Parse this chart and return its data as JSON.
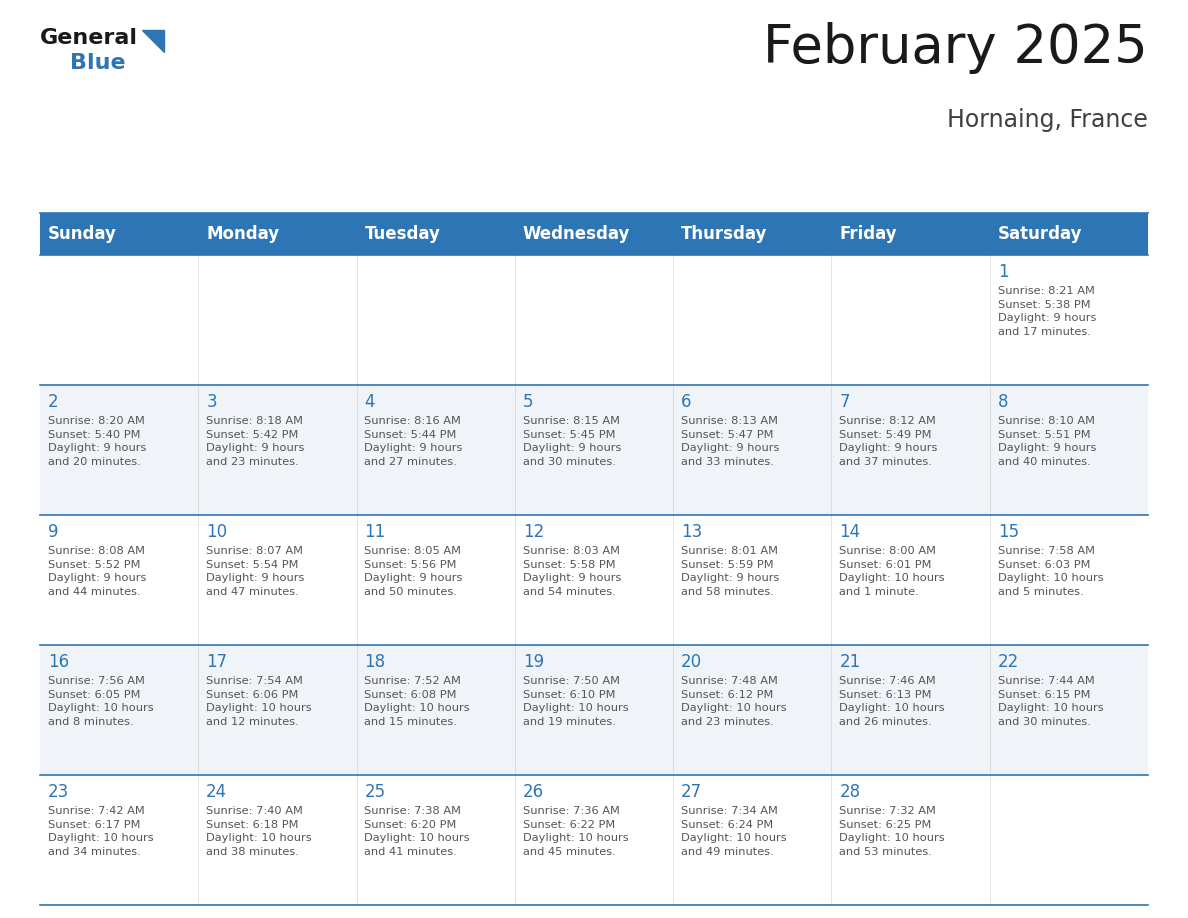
{
  "title": "February 2025",
  "subtitle": "Hornaing, France",
  "header_color": "#2E75B6",
  "header_text_color": "#FFFFFF",
  "border_color": "#2E75B6",
  "day_number_color": "#2E75B6",
  "text_color": "#404040",
  "cell_text_color": "#555555",
  "days_of_week": [
    "Sunday",
    "Monday",
    "Tuesday",
    "Wednesday",
    "Thursday",
    "Friday",
    "Saturday"
  ],
  "weeks": [
    [
      {
        "day": null,
        "info": null
      },
      {
        "day": null,
        "info": null
      },
      {
        "day": null,
        "info": null
      },
      {
        "day": null,
        "info": null
      },
      {
        "day": null,
        "info": null
      },
      {
        "day": null,
        "info": null
      },
      {
        "day": 1,
        "info": "Sunrise: 8:21 AM\nSunset: 5:38 PM\nDaylight: 9 hours\nand 17 minutes."
      }
    ],
    [
      {
        "day": 2,
        "info": "Sunrise: 8:20 AM\nSunset: 5:40 PM\nDaylight: 9 hours\nand 20 minutes."
      },
      {
        "day": 3,
        "info": "Sunrise: 8:18 AM\nSunset: 5:42 PM\nDaylight: 9 hours\nand 23 minutes."
      },
      {
        "day": 4,
        "info": "Sunrise: 8:16 AM\nSunset: 5:44 PM\nDaylight: 9 hours\nand 27 minutes."
      },
      {
        "day": 5,
        "info": "Sunrise: 8:15 AM\nSunset: 5:45 PM\nDaylight: 9 hours\nand 30 minutes."
      },
      {
        "day": 6,
        "info": "Sunrise: 8:13 AM\nSunset: 5:47 PM\nDaylight: 9 hours\nand 33 minutes."
      },
      {
        "day": 7,
        "info": "Sunrise: 8:12 AM\nSunset: 5:49 PM\nDaylight: 9 hours\nand 37 minutes."
      },
      {
        "day": 8,
        "info": "Sunrise: 8:10 AM\nSunset: 5:51 PM\nDaylight: 9 hours\nand 40 minutes."
      }
    ],
    [
      {
        "day": 9,
        "info": "Sunrise: 8:08 AM\nSunset: 5:52 PM\nDaylight: 9 hours\nand 44 minutes."
      },
      {
        "day": 10,
        "info": "Sunrise: 8:07 AM\nSunset: 5:54 PM\nDaylight: 9 hours\nand 47 minutes."
      },
      {
        "day": 11,
        "info": "Sunrise: 8:05 AM\nSunset: 5:56 PM\nDaylight: 9 hours\nand 50 minutes."
      },
      {
        "day": 12,
        "info": "Sunrise: 8:03 AM\nSunset: 5:58 PM\nDaylight: 9 hours\nand 54 minutes."
      },
      {
        "day": 13,
        "info": "Sunrise: 8:01 AM\nSunset: 5:59 PM\nDaylight: 9 hours\nand 58 minutes."
      },
      {
        "day": 14,
        "info": "Sunrise: 8:00 AM\nSunset: 6:01 PM\nDaylight: 10 hours\nand 1 minute."
      },
      {
        "day": 15,
        "info": "Sunrise: 7:58 AM\nSunset: 6:03 PM\nDaylight: 10 hours\nand 5 minutes."
      }
    ],
    [
      {
        "day": 16,
        "info": "Sunrise: 7:56 AM\nSunset: 6:05 PM\nDaylight: 10 hours\nand 8 minutes."
      },
      {
        "day": 17,
        "info": "Sunrise: 7:54 AM\nSunset: 6:06 PM\nDaylight: 10 hours\nand 12 minutes."
      },
      {
        "day": 18,
        "info": "Sunrise: 7:52 AM\nSunset: 6:08 PM\nDaylight: 10 hours\nand 15 minutes."
      },
      {
        "day": 19,
        "info": "Sunrise: 7:50 AM\nSunset: 6:10 PM\nDaylight: 10 hours\nand 19 minutes."
      },
      {
        "day": 20,
        "info": "Sunrise: 7:48 AM\nSunset: 6:12 PM\nDaylight: 10 hours\nand 23 minutes."
      },
      {
        "day": 21,
        "info": "Sunrise: 7:46 AM\nSunset: 6:13 PM\nDaylight: 10 hours\nand 26 minutes."
      },
      {
        "day": 22,
        "info": "Sunrise: 7:44 AM\nSunset: 6:15 PM\nDaylight: 10 hours\nand 30 minutes."
      }
    ],
    [
      {
        "day": 23,
        "info": "Sunrise: 7:42 AM\nSunset: 6:17 PM\nDaylight: 10 hours\nand 34 minutes."
      },
      {
        "day": 24,
        "info": "Sunrise: 7:40 AM\nSunset: 6:18 PM\nDaylight: 10 hours\nand 38 minutes."
      },
      {
        "day": 25,
        "info": "Sunrise: 7:38 AM\nSunset: 6:20 PM\nDaylight: 10 hours\nand 41 minutes."
      },
      {
        "day": 26,
        "info": "Sunrise: 7:36 AM\nSunset: 6:22 PM\nDaylight: 10 hours\nand 45 minutes."
      },
      {
        "day": 27,
        "info": "Sunrise: 7:34 AM\nSunset: 6:24 PM\nDaylight: 10 hours\nand 49 minutes."
      },
      {
        "day": 28,
        "info": "Sunrise: 7:32 AM\nSunset: 6:25 PM\nDaylight: 10 hours\nand 53 minutes."
      },
      {
        "day": null,
        "info": null
      }
    ]
  ],
  "title_fontsize": 38,
  "subtitle_fontsize": 17,
  "header_fontsize": 12,
  "day_num_fontsize": 12,
  "cell_text_fontsize": 8.2,
  "logo_general_fontsize": 16,
  "logo_blue_fontsize": 16,
  "row_colors": [
    "#FFFFFF",
    "#F0F4F8",
    "#FFFFFF",
    "#F0F4F8",
    "#FFFFFF"
  ]
}
